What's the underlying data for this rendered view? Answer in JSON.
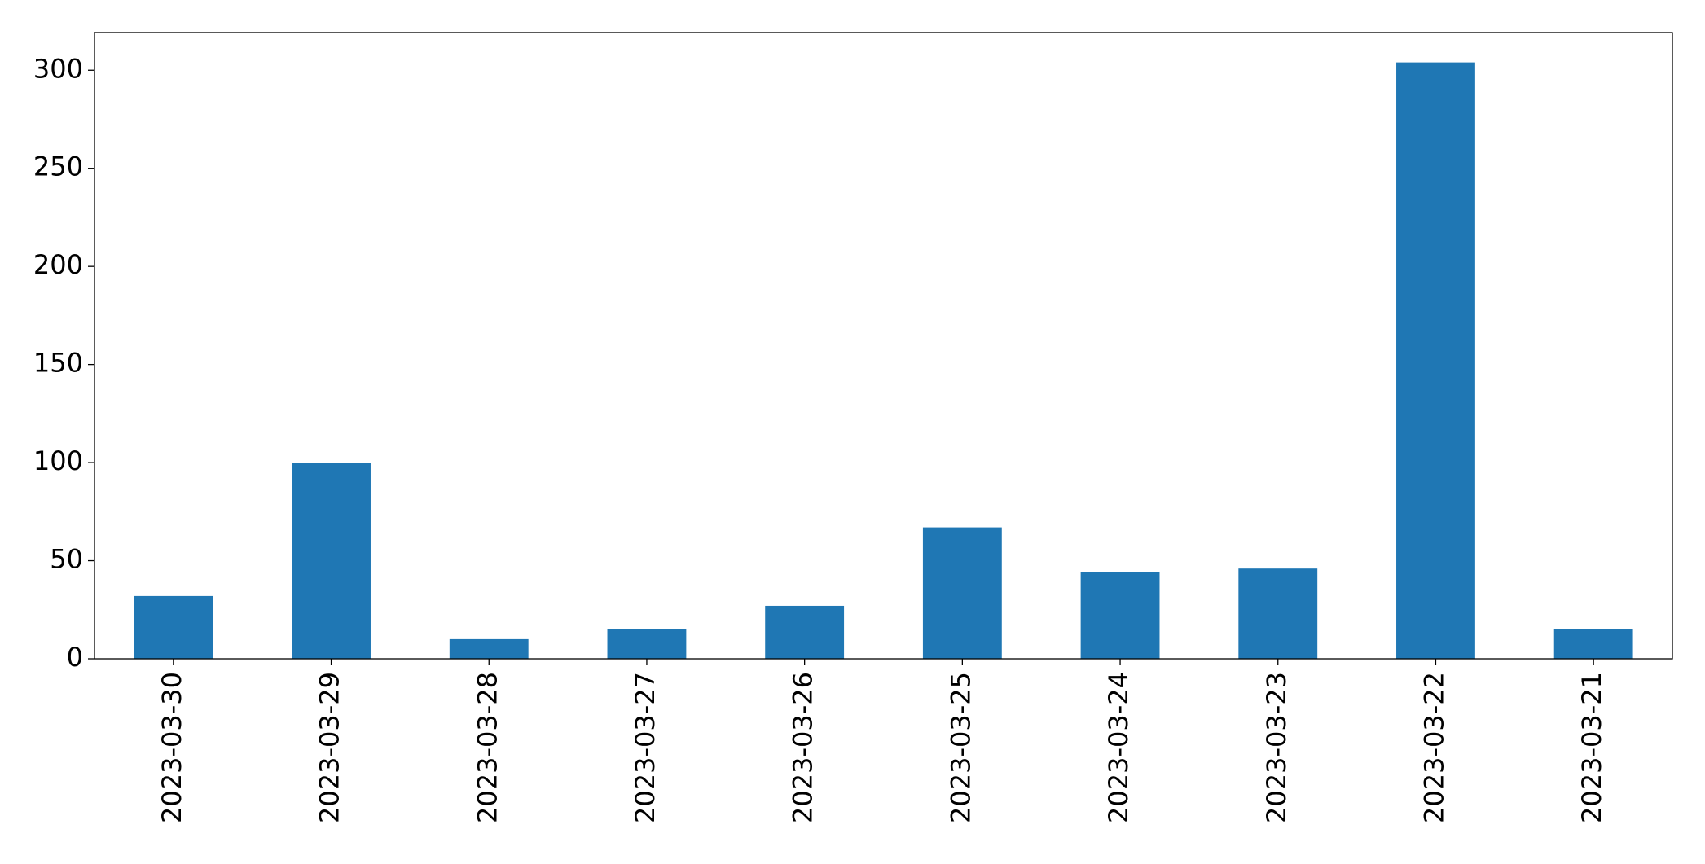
{
  "chart_data": {
    "type": "bar",
    "categories": [
      "2023-03-30",
      "2023-03-29",
      "2023-03-28",
      "2023-03-27",
      "2023-03-26",
      "2023-03-25",
      "2023-03-24",
      "2023-03-23",
      "2023-03-22",
      "2023-03-21"
    ],
    "values": [
      32,
      100,
      10,
      15,
      27,
      67,
      44,
      46,
      304,
      15
    ],
    "color": "#1f77b4",
    "ylim": [
      0,
      319.2
    ],
    "yticks": [
      0,
      50,
      100,
      150,
      200,
      250,
      300
    ],
    "grid": false
  }
}
